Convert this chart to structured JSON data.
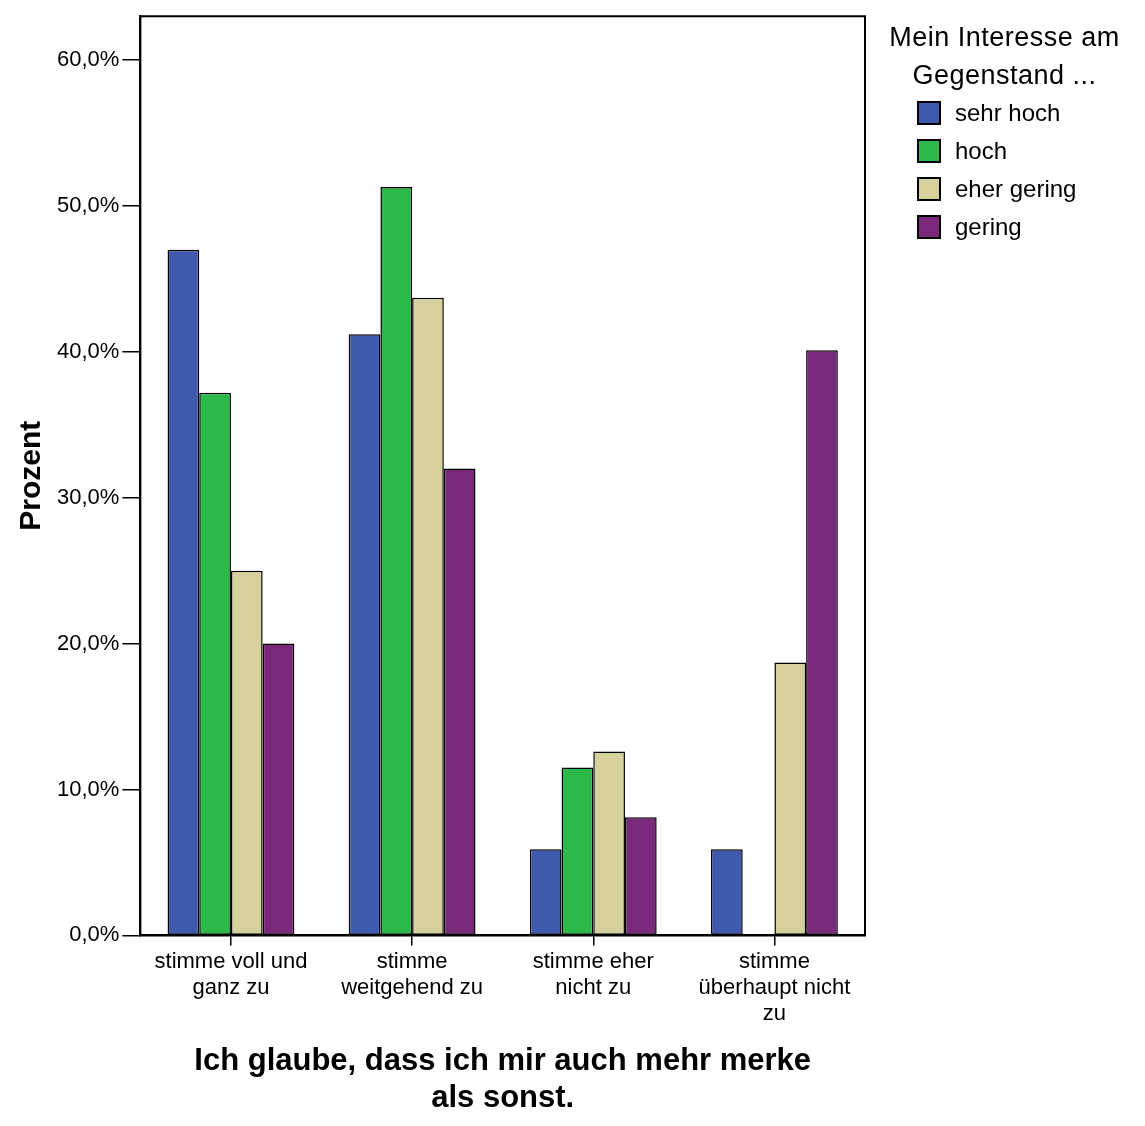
{
  "chart_data": {
    "type": "bar",
    "xlabel": "Ich glaube, dass ich mir auch mehr merke als sonst.",
    "ylabel": "Prozent",
    "legend_title": "Mein Interesse am Gegenstand ...",
    "legend": "top right",
    "grid": false,
    "categories": [
      "stimme voll und ganz zu",
      "stimme weitgehend zu",
      "stimme eher nicht zu",
      "stimme überhaupt nicht zu"
    ],
    "series": [
      {
        "name": "sehr hoch",
        "color": "#3f5aad",
        "values": [
          47.0,
          41.2,
          5.9,
          5.9
        ]
      },
      {
        "name": "hoch",
        "color": "#2db84a",
        "values": [
          37.2,
          51.3,
          11.5,
          0
        ]
      },
      {
        "name": "eher gering",
        "color": "#d6d19c",
        "values": [
          25.0,
          43.7,
          12.6,
          18.7
        ]
      },
      {
        "name": "gering",
        "color": "#7b2a7b",
        "values": [
          20.0,
          32.0,
          8.1,
          40.1
        ]
      }
    ],
    "ylim": [
      0,
      63
    ],
    "yticks": [
      {
        "value": 0,
        "label": "0,0%"
      },
      {
        "value": 10,
        "label": "10,0%"
      },
      {
        "value": 20,
        "label": "20,0%"
      },
      {
        "value": 30,
        "label": "30,0%"
      },
      {
        "value": 40,
        "label": "40,0%"
      },
      {
        "value": 50,
        "label": "50,0%"
      },
      {
        "value": 60,
        "label": "60,0%"
      }
    ]
  }
}
